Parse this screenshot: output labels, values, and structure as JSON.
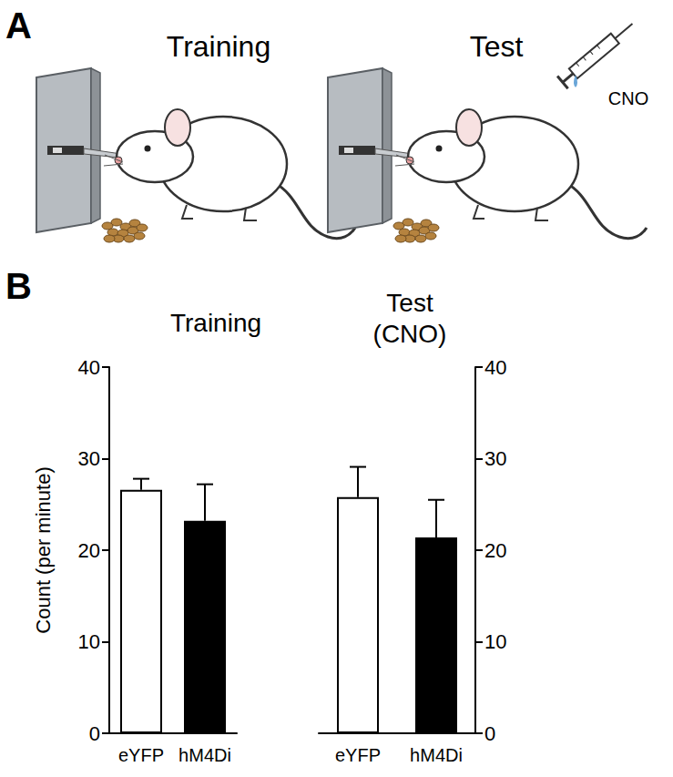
{
  "panel_a": {
    "label": "A",
    "training_title": "Training",
    "test_title": "Test",
    "drug_label": "CNO"
  },
  "panel_b_label": "B",
  "chart_data": [
    {
      "type": "bar",
      "title": "Training",
      "y_label": "Count (per minute)",
      "categories": [
        "eYFP",
        "hM4Di"
      ],
      "values": [
        26.6,
        23.2
      ],
      "errors": [
        1.2,
        4.0
      ],
      "colors": [
        "#ffffff",
        "#000000"
      ],
      "ylim": [
        0,
        40
      ],
      "yticks": [
        0,
        10,
        20,
        30,
        40
      ],
      "grid": false
    },
    {
      "type": "bar",
      "title": "Test\n(CNO)",
      "categories": [
        "eYFP",
        "hM4Di"
      ],
      "values": [
        25.8,
        21.4
      ],
      "errors": [
        3.3,
        4.1
      ],
      "colors": [
        "#ffffff",
        "#000000"
      ],
      "ylim": [
        0,
        40
      ],
      "yticks": [
        0,
        10,
        20,
        30,
        40
      ],
      "grid": false
    }
  ]
}
